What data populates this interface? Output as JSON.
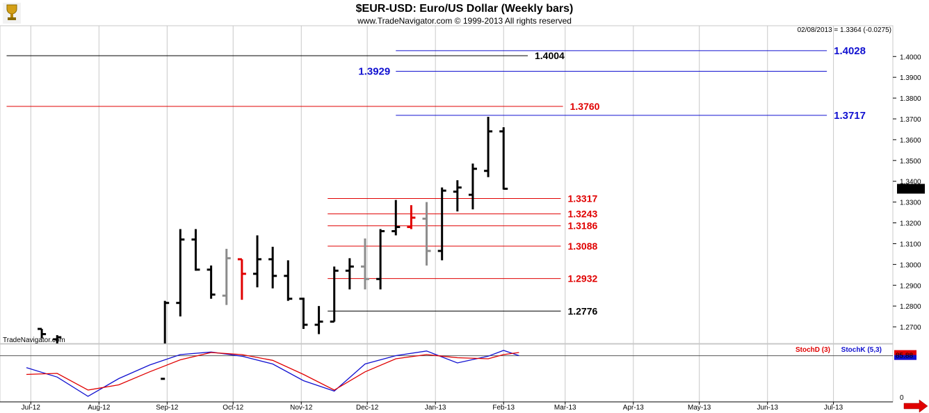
{
  "header": {
    "title": "$EUR-USD:  Euro/US Dollar  (Weekly bars)",
    "subtitle": "www.TradeNavigator.com © 1999-2013 All rights reserved",
    "last_readout": "02/08/2013 = 1.3364 (-0.0275)",
    "logo_icon": "trophy-icon",
    "watermark": "TradeNavigator.com"
  },
  "right_nav_icon": "arrow-right-icon",
  "colors": {
    "up_bar": "#000000",
    "neutral_bar": "#8c8c8c",
    "down_bar": "#e00000",
    "red_level": "#e00000",
    "blue_level": "#1010d0",
    "black_level": "#000000",
    "stochd": "#e00000",
    "stochk": "#1010d0",
    "grid": "#c8c8c8"
  },
  "chart_data": [
    {
      "type": "ohlc",
      "title": "$EUR-USD:  Euro/US Dollar  (Weekly bars)",
      "ylim": [
        1.262,
        1.4148
      ],
      "y_ticks": [
        "1.2700",
        "1.2800",
        "1.2900",
        "1.3000",
        "1.3100",
        "1.3200",
        "1.3300",
        "1.3400",
        "1.3500",
        "1.3600",
        "1.3700",
        "1.3800",
        "1.3900",
        "1.4000"
      ],
      "x_ticks": [
        "Jul-12",
        "Aug-12",
        "Sep-12",
        "Oct-12",
        "Nov-12",
        "Dec-12",
        "Jan-13",
        "Feb-13",
        "Mar-13",
        "Apr-13",
        "May-13",
        "Jun-13",
        "Jul-13"
      ],
      "x_tick_dates": [
        "2012-07-01",
        "2012-08-01",
        "2012-09-01",
        "2012-10-01",
        "2012-11-01",
        "2012-12-01",
        "2013-01-01",
        "2013-02-01",
        "2013-03-01",
        "2013-04-01",
        "2013-05-01",
        "2013-06-01",
        "2013-07-01"
      ],
      "last_price": "1.3364",
      "bars": [
        {
          "date": "2012-07-06",
          "o": 1.269,
          "h": 1.269,
          "l": 1.2645,
          "c": 1.2665,
          "color": "up"
        },
        {
          "date": "2012-07-13",
          "o": 1.264,
          "h": 1.266,
          "l": 1.258,
          "c": 1.265,
          "color": "up"
        },
        {
          "date": "2012-08-31",
          "o": 1.245,
          "h": 1.2825,
          "l": 1.244,
          "c": 1.2815,
          "color": "up"
        },
        {
          "date": "2012-09-07",
          "o": 1.2815,
          "h": 1.317,
          "l": 1.275,
          "c": 1.312,
          "color": "up"
        },
        {
          "date": "2012-09-14",
          "o": 1.312,
          "h": 1.317,
          "l": 1.297,
          "c": 1.2975,
          "color": "up"
        },
        {
          "date": "2012-09-21",
          "o": 1.2975,
          "h": 1.2995,
          "l": 1.2835,
          "c": 1.2855,
          "color": "up"
        },
        {
          "date": "2012-09-28",
          "o": 1.285,
          "h": 1.3075,
          "l": 1.2805,
          "c": 1.303,
          "color": "neutral"
        },
        {
          "date": "2012-10-05",
          "o": 1.3025,
          "h": 1.3025,
          "l": 1.283,
          "c": 1.2955,
          "color": "down"
        },
        {
          "date": "2012-10-12",
          "o": 1.2955,
          "h": 1.314,
          "l": 1.289,
          "c": 1.3025,
          "color": "up"
        },
        {
          "date": "2012-10-19",
          "o": 1.3025,
          "h": 1.3085,
          "l": 1.2885,
          "c": 1.2945,
          "color": "up"
        },
        {
          "date": "2012-10-26",
          "o": 1.2945,
          "h": 1.302,
          "l": 1.2825,
          "c": 1.2835,
          "color": "up"
        },
        {
          "date": "2012-11-02",
          "o": 1.2835,
          "h": 1.284,
          "l": 1.269,
          "c": 1.271,
          "color": "up"
        },
        {
          "date": "2012-11-09",
          "o": 1.271,
          "h": 1.28,
          "l": 1.2665,
          "c": 1.2725,
          "color": "up"
        },
        {
          "date": "2012-11-16",
          "o": 1.2725,
          "h": 1.299,
          "l": 1.2725,
          "c": 1.297,
          "color": "up"
        },
        {
          "date": "2012-11-23",
          "o": 1.297,
          "h": 1.303,
          "l": 1.288,
          "c": 1.299,
          "color": "up"
        },
        {
          "date": "2012-11-30",
          "o": 1.299,
          "h": 1.3125,
          "l": 1.288,
          "c": 1.293,
          "color": "neutral"
        },
        {
          "date": "2012-12-07",
          "o": 1.293,
          "h": 1.317,
          "l": 1.288,
          "c": 1.316,
          "color": "up"
        },
        {
          "date": "2012-12-14",
          "o": 1.316,
          "h": 1.331,
          "l": 1.314,
          "c": 1.318,
          "color": "up"
        },
        {
          "date": "2012-12-21",
          "o": 1.318,
          "h": 1.3285,
          "l": 1.317,
          "c": 1.3225,
          "color": "down"
        },
        {
          "date": "2012-12-28",
          "o": 1.322,
          "h": 1.33,
          "l": 1.2995,
          "c": 1.3065,
          "color": "neutral"
        },
        {
          "date": "2013-01-04",
          "o": 1.3065,
          "h": 1.337,
          "l": 1.302,
          "c": 1.3355,
          "color": "up"
        },
        {
          "date": "2013-01-11",
          "o": 1.335,
          "h": 1.3405,
          "l": 1.3255,
          "c": 1.337,
          "color": "up"
        },
        {
          "date": "2013-01-18",
          "o": 1.3335,
          "h": 1.3485,
          "l": 1.3265,
          "c": 1.346,
          "color": "up"
        },
        {
          "date": "2013-01-25",
          "o": 1.345,
          "h": 1.371,
          "l": 1.342,
          "c": 1.364,
          "color": "up"
        },
        {
          "date": "2013-02-01",
          "o": 1.364,
          "h": 1.366,
          "l": 1.336,
          "c": 1.3364,
          "color": "up"
        }
      ],
      "levels": [
        {
          "value": 1.4028,
          "label": "1.4028",
          "color": "blue",
          "x_from": "2012-12-14",
          "x_to": "2013-06-28",
          "label_side": "right"
        },
        {
          "value": 1.4004,
          "label": "1.4004",
          "color": "black",
          "x_from": "2012-06-20",
          "x_to": "2013-02-12",
          "label_side": "right"
        },
        {
          "value": 1.3929,
          "label": "1.3929",
          "color": "blue",
          "x_from": "2012-12-14",
          "x_to": "2013-06-28",
          "label_side": "left"
        },
        {
          "value": 1.376,
          "label": "1.3760",
          "color": "red",
          "x_from": "2012-06-20",
          "x_to": "2013-02-28",
          "label_side": "right"
        },
        {
          "value": 1.3717,
          "label": "1.3717",
          "color": "blue",
          "x_from": "2012-12-14",
          "x_to": "2013-06-28",
          "label_side": "right"
        },
        {
          "value": 1.3317,
          "label": "1.3317",
          "color": "red",
          "x_from": "2012-11-13",
          "x_to": "2013-02-27",
          "label_side": "right"
        },
        {
          "value": 1.3243,
          "label": "1.3243",
          "color": "red",
          "x_from": "2012-11-13",
          "x_to": "2013-02-27",
          "label_side": "right"
        },
        {
          "value": 1.3186,
          "label": "1.3186",
          "color": "red",
          "x_from": "2012-11-13",
          "x_to": "2013-02-27",
          "label_side": "right"
        },
        {
          "value": 1.3088,
          "label": "1.3088",
          "color": "red",
          "x_from": "2012-11-13",
          "x_to": "2013-02-27",
          "label_side": "right"
        },
        {
          "value": 1.2932,
          "label": "1.2932",
          "color": "red",
          "x_from": "2012-11-13",
          "x_to": "2013-02-27",
          "label_side": "right"
        },
        {
          "value": 1.2776,
          "label": "1.2776",
          "color": "black",
          "x_from": "2012-11-13",
          "x_to": "2013-02-27",
          "label_side": "right"
        }
      ]
    },
    {
      "type": "line",
      "legend": [
        "StochD (3)",
        "StochK (5,3)"
      ],
      "ylim": [
        0,
        100
      ],
      "y_ticks": [
        "0"
      ],
      "current_value": "85.88",
      "reference_line": 85.88,
      "series": [
        {
          "name": "StochK (5,3)",
          "color": "blue",
          "points": [
            [
              "2012-06-29",
              63
            ],
            [
              "2012-07-13",
              45
            ],
            [
              "2012-07-27",
              8
            ],
            [
              "2012-08-10",
              42
            ],
            [
              "2012-08-24",
              68
            ],
            [
              "2012-09-07",
              88
            ],
            [
              "2012-09-21",
              93
            ],
            [
              "2012-10-05",
              85
            ],
            [
              "2012-10-19",
              70
            ],
            [
              "2012-11-02",
              38
            ],
            [
              "2012-11-16",
              18
            ],
            [
              "2012-11-30",
              70
            ],
            [
              "2012-12-14",
              86
            ],
            [
              "2012-12-28",
              95
            ],
            [
              "2013-01-11",
              72
            ],
            [
              "2013-01-25",
              85
            ],
            [
              "2013-02-01",
              96
            ],
            [
              "2013-02-08",
              86
            ]
          ]
        },
        {
          "name": "StochD (3)",
          "color": "red",
          "points": [
            [
              "2012-06-29",
              50
            ],
            [
              "2012-07-13",
              52
            ],
            [
              "2012-07-27",
              20
            ],
            [
              "2012-08-10",
              30
            ],
            [
              "2012-08-24",
              55
            ],
            [
              "2012-09-07",
              78
            ],
            [
              "2012-09-21",
              92
            ],
            [
              "2012-10-05",
              88
            ],
            [
              "2012-10-19",
              77
            ],
            [
              "2012-11-02",
              50
            ],
            [
              "2012-11-16",
              20
            ],
            [
              "2012-11-30",
              55
            ],
            [
              "2012-12-14",
              80
            ],
            [
              "2012-12-28",
              88
            ],
            [
              "2013-01-11",
              82
            ],
            [
              "2013-01-25",
              80
            ],
            [
              "2013-02-01",
              88
            ],
            [
              "2013-02-08",
              92
            ]
          ]
        }
      ]
    }
  ]
}
